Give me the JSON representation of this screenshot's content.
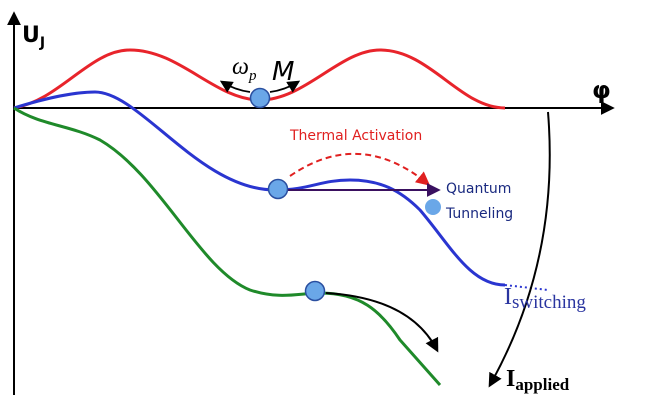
{
  "axes": {
    "y": {
      "label": "U",
      "subscript": "J"
    },
    "x": {
      "label": "φ"
    }
  },
  "annotations": {
    "frequency": {
      "symbol": "ω",
      "subscript": "p"
    },
    "mass": "M",
    "thermal": "Thermal Activation",
    "tunneling": [
      "Quantum",
      "Tunneling"
    ],
    "switching": {
      "symbol": "I",
      "subscript": "switching"
    },
    "applied": {
      "symbol": "I",
      "subscript": "applied"
    }
  }
}
